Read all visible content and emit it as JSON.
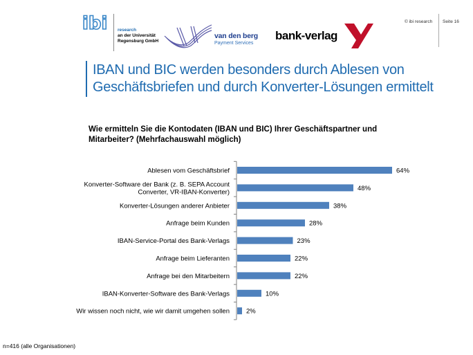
{
  "header": {
    "ibi_logo_text": "ibi",
    "ibi_sub_line1": "research",
    "ibi_sub_line2": "an der Universität",
    "ibi_sub_line3": "Regensburg GmbH",
    "vdb_name": "van den berg",
    "vdb_sub": "Payment Services",
    "bv_name": "bank-verlag",
    "copyright": "© ibi research",
    "page": "Seite 16"
  },
  "title": "IBAN und BIC werden besonders durch Ablesen von Geschäftsbriefen und durch Konverter-Lösungen ermittelt",
  "question": "Wie ermitteln Sie die Kontodaten (IBAN und BIC) Ihrer Geschäftspartner und Mitarbeiter? (Mehrfachauswahl möglich)",
  "footnote": "n=416 (alle Organisationen)",
  "colors": {
    "bar": "#4f81bd",
    "title": "#1f6bb0"
  },
  "chart_data": {
    "type": "bar",
    "orientation": "horizontal",
    "categories": [
      "Ablesen vom Geschäftsbrief",
      "Konverter-Software der Bank (z. B. SEPA Account Converter, VR-IBAN-Konverter)",
      "Konverter-Lösungen anderer Anbieter",
      "Anfrage beim Kunden",
      "IBAN-Service-Portal des Bank-Verlags",
      "Anfrage beim Lieferanten",
      "Anfrage bei den Mitarbeitern",
      "IBAN-Konverter-Software des Bank-Verlags",
      "Wir wissen noch nicht, wie wir damit umgehen sollen"
    ],
    "category_lines": [
      [
        "Ablesen vom Geschäftsbrief"
      ],
      [
        "Konverter-Software der Bank (z. B. SEPA Account",
        "Converter, VR-IBAN-Konverter)"
      ],
      [
        "Konverter-Lösungen anderer Anbieter"
      ],
      [
        "Anfrage beim Kunden"
      ],
      [
        "IBAN-Service-Portal des Bank-Verlags"
      ],
      [
        "Anfrage beim Lieferanten"
      ],
      [
        "Anfrage bei den Mitarbeitern"
      ],
      [
        "IBAN-Konverter-Software des Bank-Verlags"
      ],
      [
        "Wir wissen noch nicht, wie wir damit umgehen sollen"
      ]
    ],
    "values": [
      64,
      48,
      38,
      28,
      23,
      22,
      22,
      10,
      2
    ],
    "value_labels": [
      "64%",
      "48%",
      "38%",
      "28%",
      "23%",
      "22%",
      "22%",
      "10%",
      "2%"
    ],
    "xlim": [
      0,
      100
    ],
    "grid": false,
    "legend": "none"
  }
}
